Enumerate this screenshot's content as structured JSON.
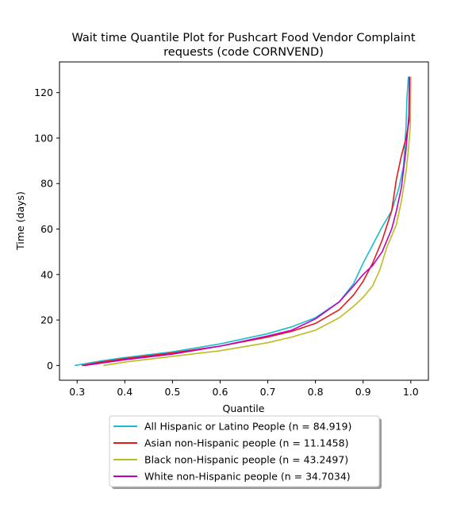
{
  "chart_data": {
    "type": "line",
    "title_line1": "Wait time Quantile Plot for Pushcart Food Vendor Complaint",
    "title_line2": "requests (code CORNVEND)",
    "xlabel": "Quantile",
    "ylabel": "Time (days)",
    "xlim": [
      0.263,
      1.037
    ],
    "ylim": [
      -6.5,
      133.5
    ],
    "x_ticks": [
      0.3,
      0.4,
      0.5,
      0.6,
      0.7,
      0.8,
      0.9,
      1.0
    ],
    "x_tick_labels": [
      "0.3",
      "0.4",
      "0.5",
      "0.6",
      "0.7",
      "0.8",
      "0.9",
      "1.0"
    ],
    "y_ticks": [
      0,
      20,
      40,
      60,
      80,
      100,
      120
    ],
    "y_tick_labels": [
      "0",
      "20",
      "40",
      "60",
      "80",
      "100",
      "120"
    ],
    "grid": false,
    "legend_position": "below plot",
    "series": [
      {
        "name": "All Hispanic or Latino People (n = 84.919)",
        "color": "#17becf",
        "points": [
          [
            0.295,
            0
          ],
          [
            0.35,
            2
          ],
          [
            0.4,
            3.5
          ],
          [
            0.5,
            6
          ],
          [
            0.6,
            9.5
          ],
          [
            0.7,
            14
          ],
          [
            0.75,
            17
          ],
          [
            0.8,
            21
          ],
          [
            0.85,
            28
          ],
          [
            0.88,
            36
          ],
          [
            0.9,
            45
          ],
          [
            0.92,
            53
          ],
          [
            0.94,
            61
          ],
          [
            0.96,
            68
          ],
          [
            0.975,
            78
          ],
          [
            0.985,
            88
          ],
          [
            0.99,
            105
          ],
          [
            0.992,
            118
          ],
          [
            0.995,
            127
          ]
        ]
      },
      {
        "name": "Asian non-Hispanic people (n = 11.1458)",
        "color": "#e41a1c",
        "points": [
          [
            0.31,
            0
          ],
          [
            0.35,
            1.5
          ],
          [
            0.4,
            3
          ],
          [
            0.5,
            5.5
          ],
          [
            0.6,
            8.5
          ],
          [
            0.7,
            12.5
          ],
          [
            0.75,
            15
          ],
          [
            0.8,
            18.5
          ],
          [
            0.85,
            24.5
          ],
          [
            0.88,
            31
          ],
          [
            0.9,
            37
          ],
          [
            0.92,
            45
          ],
          [
            0.94,
            55
          ],
          [
            0.96,
            68
          ],
          [
            0.97,
            82
          ],
          [
            0.98,
            92
          ],
          [
            0.99,
            100
          ],
          [
            0.997,
            108
          ],
          [
            0.998,
            127
          ]
        ]
      },
      {
        "name": "Black non-Hispanic people (n = 43.2497)",
        "color": "#bcbd22",
        "points": [
          [
            0.355,
            0
          ],
          [
            0.4,
            1.5
          ],
          [
            0.5,
            4
          ],
          [
            0.6,
            6.5
          ],
          [
            0.7,
            10
          ],
          [
            0.75,
            12.5
          ],
          [
            0.8,
            15.5
          ],
          [
            0.85,
            21
          ],
          [
            0.88,
            26
          ],
          [
            0.9,
            30
          ],
          [
            0.92,
            35
          ],
          [
            0.935,
            42
          ],
          [
            0.95,
            52
          ],
          [
            0.97,
            62
          ],
          [
            0.98,
            72
          ],
          [
            0.99,
            85
          ],
          [
            0.995,
            95
          ],
          [
            0.999,
            105
          ],
          [
            1.0,
            127
          ]
        ]
      },
      {
        "name": "White non-Hispanic people (n = 34.7034)",
        "color": "#bf00bf",
        "points": [
          [
            0.315,
            0
          ],
          [
            0.35,
            1
          ],
          [
            0.4,
            2.5
          ],
          [
            0.5,
            5
          ],
          [
            0.6,
            8.5
          ],
          [
            0.7,
            13
          ],
          [
            0.75,
            15.5
          ],
          [
            0.8,
            20.5
          ],
          [
            0.85,
            28
          ],
          [
            0.88,
            35
          ],
          [
            0.9,
            40
          ],
          [
            0.92,
            44
          ],
          [
            0.94,
            50
          ],
          [
            0.96,
            60
          ],
          [
            0.97,
            68
          ],
          [
            0.98,
            78
          ],
          [
            0.99,
            95
          ],
          [
            0.996,
            110
          ],
          [
            0.997,
            127
          ]
        ]
      }
    ]
  }
}
